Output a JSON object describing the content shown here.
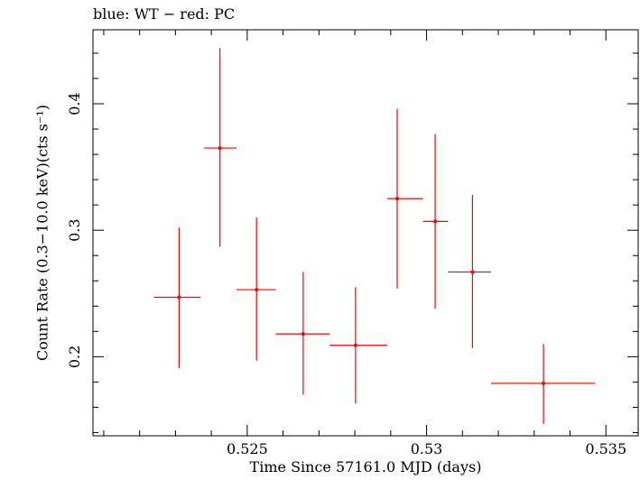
{
  "chart_data": {
    "type": "scatter",
    "title": "blue: WT − red: PC",
    "xlabel": "Time Since 57161.0 MJD (days)",
    "ylabel": "Count Rate (0.3−10.0 keV)(cts s⁻¹)",
    "xlim": [
      0.5207,
      0.5359
    ],
    "ylim": [
      0.1375,
      0.4585
    ],
    "xticks": [
      0.525,
      0.53,
      0.535
    ],
    "xtick_labels": [
      "0.525",
      "0.53",
      "0.535"
    ],
    "yticks": [
      0.2,
      0.3,
      0.4
    ],
    "ytick_labels": [
      "0.2",
      "0.3",
      "0.4"
    ],
    "grid": false,
    "series": [
      {
        "name": "PC",
        "color": "#ff0000",
        "points": [
          {
            "x": 0.5231,
            "y": 0.247,
            "xlo": 0.5224,
            "xhi": 0.5237,
            "ylo": 0.191,
            "yhi": 0.302
          },
          {
            "x": 0.52424,
            "y": 0.365,
            "xlo": 0.5238,
            "xhi": 0.5247,
            "ylo": 0.287,
            "yhi": 0.444
          },
          {
            "x": 0.52526,
            "y": 0.253,
            "xlo": 0.5247,
            "xhi": 0.5258,
            "ylo": 0.197,
            "yhi": 0.31
          },
          {
            "x": 0.52656,
            "y": 0.218,
            "xlo": 0.5258,
            "xhi": 0.5273,
            "ylo": 0.17,
            "yhi": 0.267
          },
          {
            "x": 0.52802,
            "y": 0.209,
            "xlo": 0.5273,
            "xhi": 0.5289,
            "ylo": 0.163,
            "yhi": 0.255
          },
          {
            "x": 0.52918,
            "y": 0.325,
            "xlo": 0.5289,
            "xhi": 0.5299,
            "ylo": 0.254,
            "yhi": 0.396
          },
          {
            "x": 0.53024,
            "y": 0.307,
            "xlo": 0.5299,
            "xhi": 0.5306,
            "ylo": 0.238,
            "yhi": 0.376
          },
          {
            "x": 0.53128,
            "y": 0.267,
            "xlo": 0.5306,
            "xhi": 0.5318,
            "ylo": 0.207,
            "yhi": 0.328
          },
          {
            "x": 0.53326,
            "y": 0.179,
            "xlo": 0.5318,
            "xhi": 0.5347,
            "ylo": 0.147,
            "yhi": 0.21
          }
        ]
      }
    ]
  }
}
